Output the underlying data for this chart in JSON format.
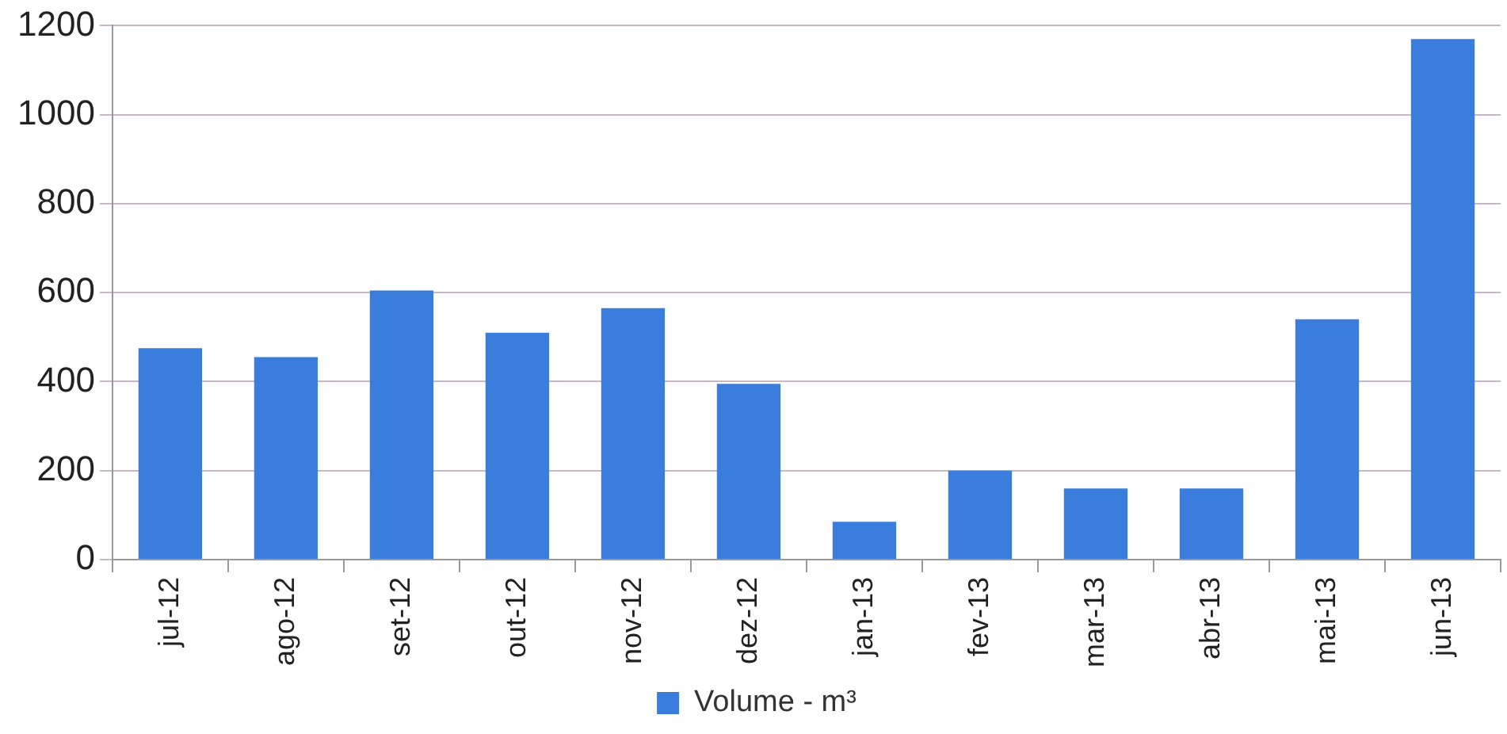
{
  "chart_data": {
    "type": "bar",
    "categories": [
      "jul-12",
      "ago-12",
      "set-12",
      "out-12",
      "nov-12",
      "dez-12",
      "jan-13",
      "fev-13",
      "mar-13",
      "abr-13",
      "mai-13",
      "jun-13"
    ],
    "series": [
      {
        "name": "Volume - m³",
        "color": "#3b7ddd",
        "values": [
          475,
          455,
          605,
          510,
          565,
          395,
          85,
          200,
          160,
          160,
          540,
          1170
        ]
      }
    ],
    "ylim": [
      0,
      1200
    ],
    "yticks": [
      0,
      200,
      400,
      600,
      800,
      1000,
      1200
    ],
    "grid": "y",
    "legend": "bottom"
  }
}
